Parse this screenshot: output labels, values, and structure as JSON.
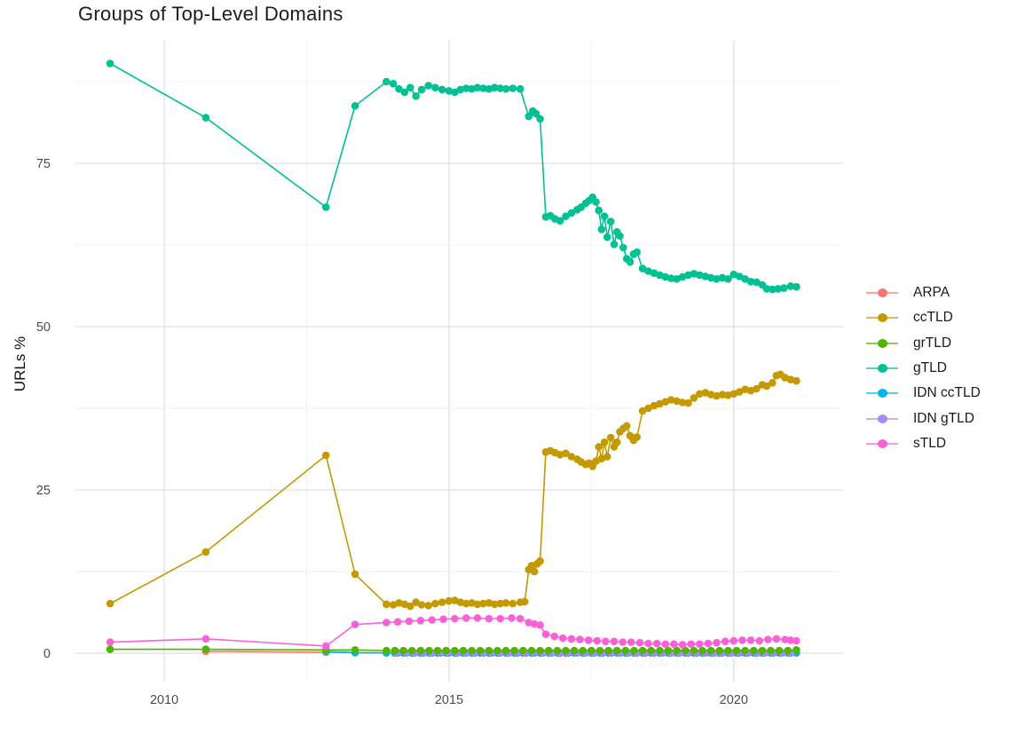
{
  "title": "Groups of Top-Level Domains",
  "chart_data": {
    "type": "line",
    "title": "Groups of Top-Level Domains",
    "xlabel": "",
    "ylabel": "URLs %",
    "x_ticks": [
      2010,
      2015,
      2020
    ],
    "x_minor_ticks": [
      2012.5,
      2017.5
    ],
    "y_ticks": [
      0,
      25,
      50,
      75
    ],
    "y_minor_ticks": [
      12.5,
      37.5,
      62.5,
      87.5
    ],
    "xlim": [
      2008.44,
      2021.92
    ],
    "ylim": [
      -4.35,
      93.9
    ],
    "grid": "on",
    "legend_position": "right",
    "colors": {
      "major_grid": "#e4e4e4",
      "minor_grid": "#f2f2f2",
      "tick_text": "#4d4d4d",
      "title_text": "#1c1c1c"
    },
    "series": [
      {
        "name": "ARPA",
        "color": "#F8766D",
        "points": [
          [
            2010.73,
            0.3
          ],
          [
            2012.84,
            0.15
          ],
          [
            2013.35,
            0.1
          ]
        ],
        "segments": [
          {
            "from": 2013.9,
            "to": 2021.1,
            "step": 0.15,
            "value": 0.05
          }
        ]
      },
      {
        "name": "ccTLD",
        "color": "#C49A00",
        "points": [
          [
            2009.05,
            7.6
          ],
          [
            2010.73,
            15.5
          ],
          [
            2012.84,
            30.3
          ],
          [
            2013.35,
            12.1
          ],
          [
            2013.9,
            7.5
          ],
          [
            2014.02,
            7.4
          ],
          [
            2014.12,
            7.7
          ],
          [
            2014.22,
            7.5
          ],
          [
            2014.32,
            7.2
          ],
          [
            2014.42,
            7.8
          ],
          [
            2014.52,
            7.4
          ],
          [
            2014.64,
            7.3
          ],
          [
            2014.76,
            7.6
          ],
          [
            2014.88,
            7.8
          ],
          [
            2015,
            8
          ],
          [
            2015.1,
            8.1
          ],
          [
            2015.2,
            7.8
          ],
          [
            2015.3,
            7.6
          ],
          [
            2015.4,
            7.7
          ],
          [
            2015.5,
            7.5
          ],
          [
            2015.6,
            7.6
          ],
          [
            2015.7,
            7.7
          ],
          [
            2015.8,
            7.5
          ],
          [
            2015.9,
            7.6
          ],
          [
            2016,
            7.7
          ],
          [
            2016.12,
            7.6
          ],
          [
            2016.25,
            7.8
          ],
          [
            2016.33,
            7.9
          ],
          [
            2016.4,
            12.8
          ],
          [
            2016.45,
            13.4
          ],
          [
            2016.5,
            12.5
          ],
          [
            2016.55,
            13.7
          ],
          [
            2016.6,
            14.1
          ],
          [
            2016.7,
            30.8
          ],
          [
            2016.78,
            31
          ],
          [
            2016.86,
            30.7
          ],
          [
            2016.95,
            30.4
          ],
          [
            2017.05,
            30.6
          ],
          [
            2017.15,
            30.1
          ],
          [
            2017.25,
            29.7
          ],
          [
            2017.32,
            29.3
          ],
          [
            2017.4,
            28.9
          ],
          [
            2017.46,
            29.1
          ],
          [
            2017.52,
            28.6
          ],
          [
            2017.58,
            29.4
          ],
          [
            2017.63,
            31.6
          ],
          [
            2017.68,
            29.8
          ],
          [
            2017.73,
            32.3
          ],
          [
            2017.78,
            30.1
          ],
          [
            2017.84,
            33
          ],
          [
            2017.9,
            31.6
          ],
          [
            2017.95,
            32.3
          ],
          [
            2018,
            33.9
          ],
          [
            2018.06,
            34.4
          ],
          [
            2018.12,
            34.8
          ],
          [
            2018.18,
            33.3
          ],
          [
            2018.24,
            32.6
          ],
          [
            2018.3,
            33.1
          ],
          [
            2018.4,
            37.1
          ],
          [
            2018.5,
            37.5
          ],
          [
            2018.6,
            37.9
          ],
          [
            2018.7,
            38.2
          ],
          [
            2018.8,
            38.5
          ],
          [
            2018.9,
            38.8
          ],
          [
            2019,
            38.6
          ],
          [
            2019.1,
            38.4
          ],
          [
            2019.2,
            38.3
          ],
          [
            2019.3,
            39.1
          ],
          [
            2019.4,
            39.7
          ],
          [
            2019.5,
            39.9
          ],
          [
            2019.6,
            39.6
          ],
          [
            2019.7,
            39.4
          ],
          [
            2019.8,
            39.6
          ],
          [
            2019.9,
            39.5
          ],
          [
            2020,
            39.7
          ],
          [
            2020.1,
            40
          ],
          [
            2020.2,
            40.4
          ],
          [
            2020.3,
            40.2
          ],
          [
            2020.4,
            40.5
          ],
          [
            2020.5,
            41.1
          ],
          [
            2020.58,
            40.9
          ],
          [
            2020.68,
            41.4
          ],
          [
            2020.75,
            42.5
          ],
          [
            2020.82,
            42.7
          ],
          [
            2020.9,
            42.2
          ],
          [
            2021,
            41.9
          ],
          [
            2021.1,
            41.7
          ]
        ]
      },
      {
        "name": "grTLD",
        "color": "#53B400",
        "points": [
          [
            2009.05,
            0.6
          ],
          [
            2010.73,
            0.6
          ],
          [
            2012.84,
            0.5
          ],
          [
            2013.35,
            0.5
          ],
          [
            2021.1,
            0.5
          ]
        ],
        "segments": [
          {
            "from": 2013.9,
            "to": 2021.05,
            "step": 0.15,
            "value": 0.4
          }
        ]
      },
      {
        "name": "gTLD",
        "color": "#00C094",
        "points": [
          [
            2009.05,
            90.3
          ],
          [
            2010.73,
            82
          ],
          [
            2012.84,
            68.3
          ],
          [
            2013.35,
            83.8
          ],
          [
            2013.9,
            87.5
          ],
          [
            2014.02,
            87.2
          ],
          [
            2014.12,
            86.4
          ],
          [
            2014.22,
            85.9
          ],
          [
            2014.32,
            86.6
          ],
          [
            2014.42,
            85.3
          ],
          [
            2014.52,
            86.3
          ],
          [
            2014.64,
            86.9
          ],
          [
            2014.76,
            86.6
          ],
          [
            2014.88,
            86.3
          ],
          [
            2015,
            86.1
          ],
          [
            2015.1,
            85.9
          ],
          [
            2015.2,
            86.3
          ],
          [
            2015.3,
            86.5
          ],
          [
            2015.4,
            86.4
          ],
          [
            2015.5,
            86.6
          ],
          [
            2015.6,
            86.5
          ],
          [
            2015.7,
            86.4
          ],
          [
            2015.8,
            86.6
          ],
          [
            2015.9,
            86.5
          ],
          [
            2016,
            86.4
          ],
          [
            2016.12,
            86.5
          ],
          [
            2016.25,
            86.4
          ],
          [
            2016.4,
            82.2
          ],
          [
            2016.47,
            83
          ],
          [
            2016.53,
            82.6
          ],
          [
            2016.6,
            81.8
          ],
          [
            2016.7,
            66.8
          ],
          [
            2016.78,
            67
          ],
          [
            2016.86,
            66.5
          ],
          [
            2016.95,
            66.2
          ],
          [
            2017.05,
            66.9
          ],
          [
            2017.15,
            67.4
          ],
          [
            2017.25,
            67.9
          ],
          [
            2017.32,
            68.3
          ],
          [
            2017.4,
            68.9
          ],
          [
            2017.46,
            69.3
          ],
          [
            2017.52,
            69.8
          ],
          [
            2017.58,
            69.1
          ],
          [
            2017.63,
            67.8
          ],
          [
            2017.68,
            64.9
          ],
          [
            2017.73,
            66.9
          ],
          [
            2017.78,
            63.7
          ],
          [
            2017.84,
            66.1
          ],
          [
            2017.9,
            62.6
          ],
          [
            2017.95,
            64.5
          ],
          [
            2018,
            63.9
          ],
          [
            2018.06,
            62.1
          ],
          [
            2018.12,
            60.4
          ],
          [
            2018.18,
            59.9
          ],
          [
            2018.24,
            61.1
          ],
          [
            2018.3,
            61.4
          ],
          [
            2018.4,
            58.9
          ],
          [
            2018.5,
            58.5
          ],
          [
            2018.6,
            58.2
          ],
          [
            2018.7,
            57.9
          ],
          [
            2018.8,
            57.6
          ],
          [
            2018.9,
            57.4
          ],
          [
            2019,
            57.3
          ],
          [
            2019.1,
            57.6
          ],
          [
            2019.2,
            57.9
          ],
          [
            2019.3,
            58.1
          ],
          [
            2019.4,
            57.9
          ],
          [
            2019.5,
            57.7
          ],
          [
            2019.6,
            57.5
          ],
          [
            2019.7,
            57.3
          ],
          [
            2019.8,
            57.5
          ],
          [
            2019.9,
            57.3
          ],
          [
            2020,
            58
          ],
          [
            2020.1,
            57.7
          ],
          [
            2020.2,
            57.3
          ],
          [
            2020.3,
            56.9
          ],
          [
            2020.4,
            56.8
          ],
          [
            2020.5,
            56.4
          ],
          [
            2020.58,
            55.8
          ],
          [
            2020.68,
            55.7
          ],
          [
            2020.78,
            55.8
          ],
          [
            2020.88,
            55.9
          ],
          [
            2021,
            56.2
          ],
          [
            2021.1,
            56.1
          ]
        ]
      },
      {
        "name": "IDN ccTLD",
        "color": "#00B6EB",
        "points": [
          [
            2012.84,
            0.25
          ],
          [
            2013.35,
            0.1
          ]
        ],
        "segments": [
          {
            "from": 2013.9,
            "to": 2021.1,
            "step": 0.15,
            "value": 0.05
          }
        ]
      },
      {
        "name": "IDN gTLD",
        "color": "#A58AFF",
        "points": [],
        "segments": [
          {
            "from": 2014.1,
            "to": 2021.1,
            "step": 0.15,
            "value": 0.03
          }
        ]
      },
      {
        "name": "sTLD",
        "color": "#FB61D7",
        "points": [
          [
            2009.05,
            1.7
          ],
          [
            2010.73,
            2.2
          ],
          [
            2012.84,
            1.1
          ],
          [
            2013.35,
            4.4
          ],
          [
            2013.9,
            4.7
          ],
          [
            2014.1,
            4.8
          ],
          [
            2014.3,
            4.9
          ],
          [
            2014.5,
            5
          ],
          [
            2014.7,
            5.1
          ],
          [
            2014.9,
            5.2
          ],
          [
            2015.1,
            5.3
          ],
          [
            2015.3,
            5.4
          ],
          [
            2015.5,
            5.4
          ],
          [
            2015.7,
            5.3
          ],
          [
            2015.9,
            5.3
          ],
          [
            2016.1,
            5.4
          ],
          [
            2016.25,
            5.3
          ],
          [
            2016.4,
            4.7
          ],
          [
            2016.5,
            4.5
          ],
          [
            2016.6,
            4.3
          ],
          [
            2016.7,
            2.9
          ],
          [
            2016.85,
            2.6
          ],
          [
            2017,
            2.3
          ],
          [
            2017.15,
            2.2
          ],
          [
            2017.3,
            2.1
          ],
          [
            2017.45,
            2
          ],
          [
            2017.6,
            1.9
          ],
          [
            2017.75,
            1.8
          ],
          [
            2017.9,
            1.8
          ],
          [
            2018.05,
            1.7
          ],
          [
            2018.2,
            1.7
          ],
          [
            2018.35,
            1.6
          ],
          [
            2018.5,
            1.5
          ],
          [
            2018.65,
            1.5
          ],
          [
            2018.8,
            1.4
          ],
          [
            2018.95,
            1.4
          ],
          [
            2019.1,
            1.3
          ],
          [
            2019.25,
            1.4
          ],
          [
            2019.4,
            1.4
          ],
          [
            2019.55,
            1.5
          ],
          [
            2019.7,
            1.6
          ],
          [
            2019.85,
            1.8
          ],
          [
            2020,
            1.9
          ],
          [
            2020.15,
            2
          ],
          [
            2020.3,
            2
          ],
          [
            2020.45,
            1.9
          ],
          [
            2020.6,
            2.1
          ],
          [
            2020.75,
            2.2
          ],
          [
            2020.9,
            2.1
          ],
          [
            2021,
            2
          ],
          [
            2021.1,
            1.9
          ]
        ]
      }
    ]
  },
  "legend": {
    "items": [
      "ARPA",
      "ccTLD",
      "grTLD",
      "gTLD",
      "IDN ccTLD",
      "IDN gTLD",
      "sTLD"
    ]
  }
}
